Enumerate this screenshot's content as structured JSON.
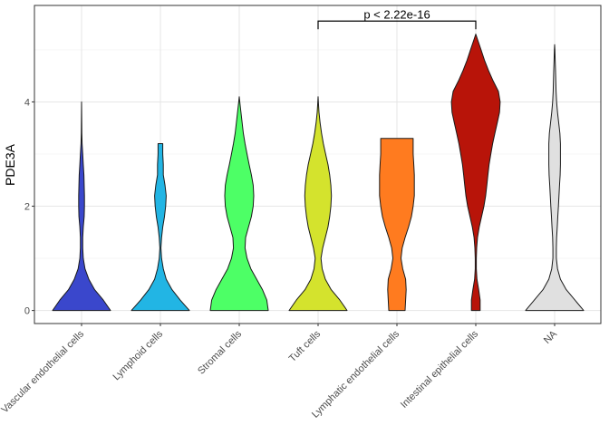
{
  "chart_data": {
    "type": "violin",
    "ylabel": "PDE3A",
    "xlabel": "",
    "ylim": [
      -0.25,
      5.85
    ],
    "yticks": [
      0,
      2,
      4
    ],
    "grid": true,
    "categories": [
      "Vascular endothelial cells",
      "Lymphoid cells",
      "Stromal cells",
      "Tuft cells",
      "Lymphatic endothelial cells",
      "Intestinal epithelial cells",
      "NA"
    ],
    "colors": [
      "#3a47cc",
      "#22b5e4",
      "#4dff66",
      "#d4e32d",
      "#ff7b1f",
      "#b81409",
      "#e0e0e0"
    ],
    "violins": [
      {
        "y": [
          0,
          0.2,
          0.4,
          0.6,
          0.8,
          1.0,
          1.2,
          1.4,
          1.6,
          1.8,
          2.0,
          2.2,
          2.4,
          2.6,
          2.8,
          3.0,
          3.2,
          3.4,
          3.6,
          3.8,
          4.0
        ],
        "w": [
          1.0,
          0.75,
          0.45,
          0.25,
          0.12,
          0.06,
          0.04,
          0.04,
          0.06,
          0.09,
          0.1,
          0.1,
          0.09,
          0.08,
          0.06,
          0.04,
          0.02,
          0.01,
          0.005,
          0.003,
          0
        ]
      },
      {
        "y": [
          0,
          0.2,
          0.4,
          0.6,
          0.8,
          1.0,
          1.2,
          1.4,
          1.6,
          1.8,
          2.0,
          2.2,
          2.4,
          2.6,
          2.8,
          3.0,
          3.2
        ],
        "w": [
          1.0,
          0.68,
          0.4,
          0.2,
          0.1,
          0.04,
          0.02,
          0.04,
          0.08,
          0.14,
          0.18,
          0.2,
          0.16,
          0.1,
          0.1,
          0.08,
          0.08
        ]
      },
      {
        "y": [
          0,
          0.2,
          0.4,
          0.6,
          0.8,
          1.0,
          1.2,
          1.4,
          1.6,
          1.8,
          2.0,
          2.2,
          2.4,
          2.6,
          2.8,
          3.0,
          3.2,
          3.4,
          3.6,
          3.8,
          4.0,
          4.1
        ],
        "w": [
          1.0,
          0.95,
          0.8,
          0.6,
          0.4,
          0.27,
          0.2,
          0.22,
          0.32,
          0.42,
          0.48,
          0.5,
          0.48,
          0.42,
          0.34,
          0.27,
          0.2,
          0.14,
          0.1,
          0.06,
          0.02,
          0
        ]
      },
      {
        "y": [
          0,
          0.2,
          0.4,
          0.6,
          0.8,
          1.0,
          1.2,
          1.4,
          1.6,
          1.8,
          2.0,
          2.2,
          2.4,
          2.6,
          2.8,
          3.0,
          3.2,
          3.4,
          3.6,
          3.8,
          4.0,
          4.1
        ],
        "w": [
          1.0,
          0.75,
          0.45,
          0.25,
          0.14,
          0.1,
          0.16,
          0.25,
          0.34,
          0.4,
          0.44,
          0.46,
          0.44,
          0.4,
          0.34,
          0.26,
          0.18,
          0.12,
          0.07,
          0.03,
          0.01,
          0
        ]
      },
      {
        "y": [
          0,
          0.2,
          0.4,
          0.6,
          0.8,
          1.0,
          1.2,
          1.4,
          1.6,
          1.8,
          2.0,
          2.2,
          2.4,
          2.6,
          2.8,
          3.0,
          3.2,
          3.3
        ],
        "w": [
          0.28,
          0.3,
          0.32,
          0.3,
          0.2,
          0.14,
          0.18,
          0.28,
          0.4,
          0.5,
          0.56,
          0.6,
          0.6,
          0.6,
          0.58,
          0.56,
          0.56,
          0.56
        ]
      },
      {
        "y": [
          0,
          0.2,
          0.4,
          0.6,
          0.8,
          1.0,
          1.2,
          1.4,
          1.6,
          1.8,
          2.0,
          2.2,
          2.4,
          2.6,
          2.8,
          3.0,
          3.2,
          3.4,
          3.6,
          3.8,
          4.0,
          4.2,
          4.4,
          4.6,
          4.8,
          5.0,
          5.2,
          5.3
        ],
        "w": [
          0.15,
          0.15,
          0.1,
          0.04,
          0.02,
          0.02,
          0.03,
          0.06,
          0.12,
          0.2,
          0.28,
          0.34,
          0.38,
          0.42,
          0.46,
          0.52,
          0.58,
          0.66,
          0.74,
          0.82,
          0.84,
          0.78,
          0.6,
          0.44,
          0.3,
          0.18,
          0.06,
          0
        ]
      },
      {
        "y": [
          0,
          0.2,
          0.4,
          0.6,
          0.8,
          1.0,
          1.2,
          1.4,
          1.6,
          1.8,
          2.0,
          2.2,
          2.4,
          2.6,
          2.8,
          3.0,
          3.2,
          3.4,
          3.6,
          3.8,
          4.0,
          4.2,
          4.4,
          4.6,
          4.8,
          5.0,
          5.1
        ],
        "w": [
          1.0,
          0.7,
          0.4,
          0.2,
          0.1,
          0.06,
          0.06,
          0.07,
          0.09,
          0.11,
          0.13,
          0.15,
          0.17,
          0.19,
          0.2,
          0.2,
          0.2,
          0.18,
          0.14,
          0.1,
          0.07,
          0.05,
          0.04,
          0.03,
          0.02,
          0.01,
          0
        ]
      }
    ],
    "comparison": {
      "from": 3,
      "to": 5,
      "y": 5.55,
      "label": "p < 2.22e-16"
    }
  }
}
